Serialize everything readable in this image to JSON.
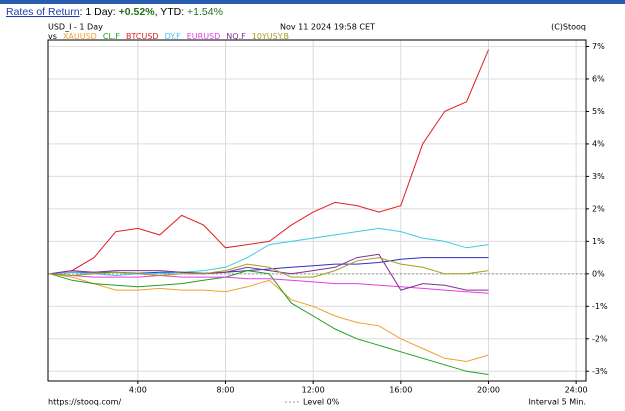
{
  "header": {
    "link": "Rates of Return",
    "day_label": ": 1 Day:",
    "day_value": "+0.52%",
    "ytd_label": ", YTD:",
    "ytd_value": "+1.54%"
  },
  "chart_data": {
    "type": "line",
    "timestamp": "Nov 11 2024 19:58 CET",
    "credit": "(C)Stooq",
    "vs_label": "vs",
    "footer_url": "https://stooq.com/",
    "level_label": "Level 0%",
    "interval_label": "Interval 5 Min.",
    "level": 0,
    "x": [
      0,
      1,
      2,
      3,
      4,
      5,
      6,
      7,
      8,
      9,
      10,
      11,
      12,
      13,
      14,
      15,
      16,
      17,
      18,
      19,
      20
    ],
    "xlim": [
      -0.1,
      24.45
    ],
    "xticks": [
      {
        "value": 4,
        "label": "4:00"
      },
      {
        "value": 8,
        "label": "8:00"
      },
      {
        "value": 12,
        "label": "12:00"
      },
      {
        "value": 16,
        "label": "16:00"
      },
      {
        "value": 20,
        "label": "20:00"
      },
      {
        "value": 24,
        "label": "24:00"
      }
    ],
    "ylim": [
      -3.3,
      7.2
    ],
    "yticks": [
      {
        "value": 7,
        "label": "7%"
      },
      {
        "value": 6,
        "label": "6%"
      },
      {
        "value": 5,
        "label": "5%"
      },
      {
        "value": 4,
        "label": "4%"
      },
      {
        "value": 3,
        "label": "3%"
      },
      {
        "value": 2,
        "label": "2%"
      },
      {
        "value": 1,
        "label": "1%"
      },
      {
        "value": 0,
        "label": "0%"
      },
      {
        "value": -1,
        "label": "-1%"
      },
      {
        "value": -2,
        "label": "-2%"
      },
      {
        "value": -3,
        "label": "-3%"
      }
    ],
    "grid": true,
    "series": [
      {
        "name": "USD_I - 1 Day",
        "color": "#3030c0",
        "values": [
          0,
          0.05,
          0.05,
          0.05,
          0.02,
          0.05,
          0.05,
          0.02,
          0.05,
          0.1,
          0.15,
          0.2,
          0.25,
          0.3,
          0.3,
          0.35,
          0.45,
          0.5,
          0.5,
          0.5,
          0.5
        ]
      },
      {
        "name": "XAUUSD",
        "color": "#f0a030",
        "values": [
          0,
          -0.1,
          -0.3,
          -0.5,
          -0.5,
          -0.45,
          -0.5,
          -0.5,
          -0.55,
          -0.4,
          -0.2,
          -0.8,
          -1.0,
          -1.3,
          -1.5,
          -1.6,
          -2.0,
          -2.3,
          -2.6,
          -2.7,
          -2.5
        ]
      },
      {
        "name": "CL.F",
        "color": "#20a020",
        "values": [
          0,
          -0.2,
          -0.3,
          -0.35,
          -0.4,
          -0.35,
          -0.3,
          -0.2,
          -0.1,
          0.1,
          0.0,
          -0.9,
          -1.3,
          -1.7,
          -2.0,
          -2.2,
          -2.4,
          -2.6,
          -2.8,
          -3.0,
          -3.1
        ]
      },
      {
        "name": "BTCUSD",
        "color": "#e02020",
        "values": [
          0,
          0.1,
          0.5,
          1.3,
          1.4,
          1.2,
          1.8,
          1.5,
          0.8,
          0.9,
          1.0,
          1.5,
          1.9,
          2.2,
          2.1,
          1.9,
          2.1,
          4.0,
          5.0,
          5.3,
          6.9
        ]
      },
      {
        "name": "DY.F",
        "color": "#40c8e8",
        "values": [
          0,
          0.05,
          0.0,
          -0.05,
          0.0,
          0.0,
          0.05,
          0.1,
          0.2,
          0.5,
          0.9,
          1.0,
          1.1,
          1.2,
          1.3,
          1.4,
          1.3,
          1.1,
          1.0,
          0.8,
          0.9
        ]
      },
      {
        "name": "EURUSD",
        "color": "#e040e0",
        "values": [
          0,
          -0.05,
          -0.1,
          -0.1,
          -0.1,
          -0.05,
          -0.1,
          -0.1,
          -0.1,
          -0.15,
          -0.15,
          -0.2,
          -0.25,
          -0.3,
          -0.3,
          -0.35,
          -0.4,
          -0.45,
          -0.5,
          -0.55,
          -0.6
        ]
      },
      {
        "name": "NQ.F",
        "color": "#803090",
        "values": [
          0,
          0.1,
          0.05,
          0.1,
          0.1,
          0.1,
          0.05,
          0.0,
          0.05,
          0.2,
          0.1,
          0.0,
          0.1,
          0.2,
          0.5,
          0.6,
          -0.5,
          -0.3,
          -0.35,
          -0.5,
          -0.5
        ]
      },
      {
        "name": "10YUSY.B",
        "color": "#a0a020",
        "values": [
          0,
          -0.05,
          0.0,
          0.05,
          0.0,
          -0.05,
          0.0,
          0.0,
          0.1,
          0.3,
          0.2,
          -0.1,
          -0.1,
          0.1,
          0.4,
          0.5,
          0.3,
          0.2,
          0.0,
          0.0,
          0.1
        ]
      }
    ]
  }
}
